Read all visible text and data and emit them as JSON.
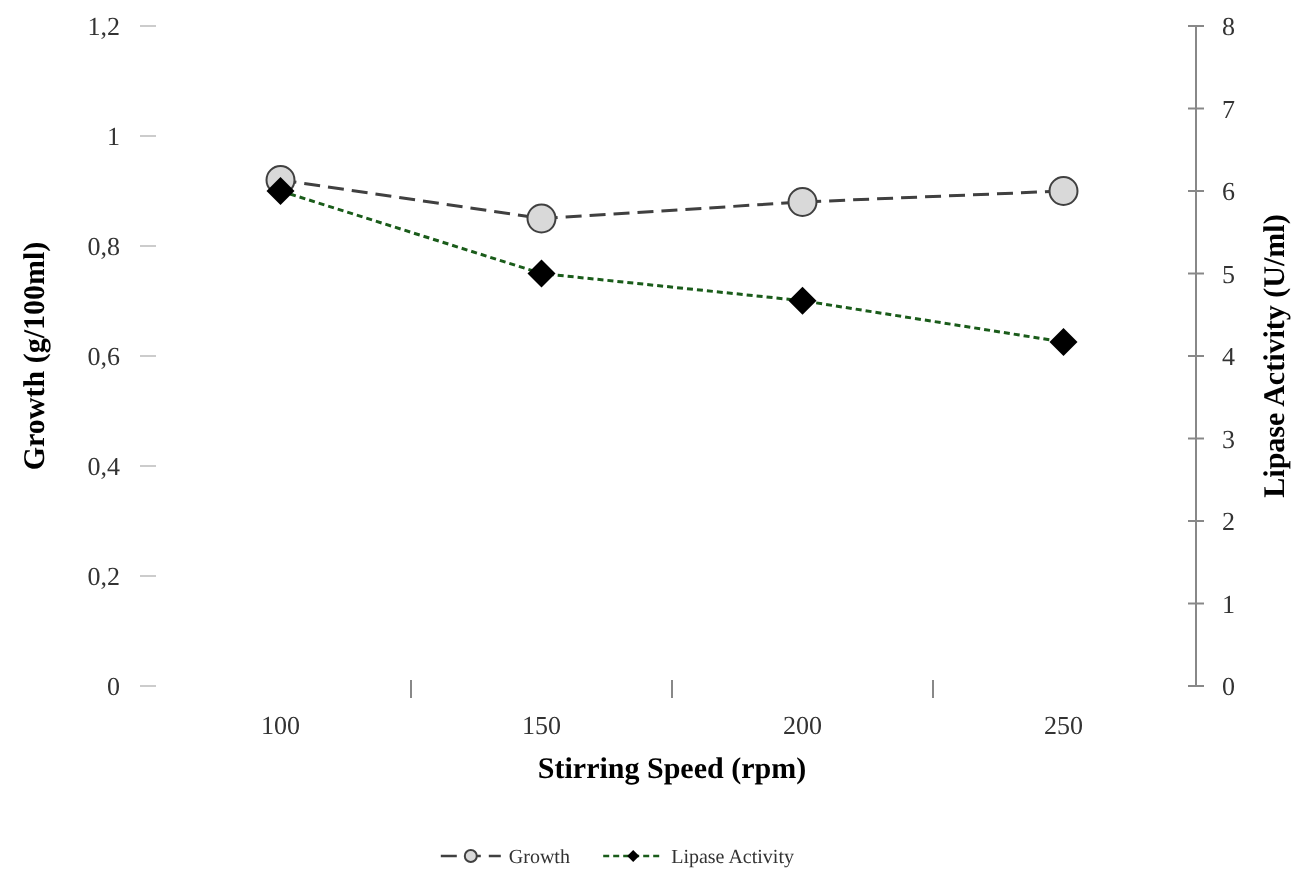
{
  "chart_data": {
    "type": "line",
    "xlabel": "Stirring Speed (rpm)",
    "ylabel": "Growth (g/100ml)",
    "y2label": "Lipase Activity (U/ml)",
    "categories": [
      "100",
      "150",
      "200",
      "250"
    ],
    "series": [
      {
        "name": "Growth",
        "color": "#404040",
        "values": [
          0.92,
          0.85,
          0.88,
          0.9
        ],
        "marker": "circle",
        "line_style": "dashed"
      },
      {
        "name": "Lipase Activity",
        "color": "#1a5c1a",
        "values": [
          6.0,
          5.0,
          4.67,
          4.17
        ],
        "marker": "diamond",
        "line_style": "dotted",
        "axis": "y2"
      }
    ],
    "ylim": [
      0,
      1.2
    ],
    "yticks": [
      0,
      {
        "value": 0.2,
        "label": "0,2"
      },
      {
        "value": 0.4,
        "label": "0,4"
      },
      {
        "value": 0.6,
        "label": "0,6"
      },
      {
        "value": 0.8,
        "label": "0,8"
      },
      1,
      {
        "value": 1.2,
        "label": "1,2"
      }
    ],
    "y2lim": [
      0,
      8
    ],
    "y2ticks": [
      0,
      1,
      2,
      3,
      4,
      5,
      6,
      7,
      8
    ],
    "grid": false,
    "legend": "bottom"
  }
}
